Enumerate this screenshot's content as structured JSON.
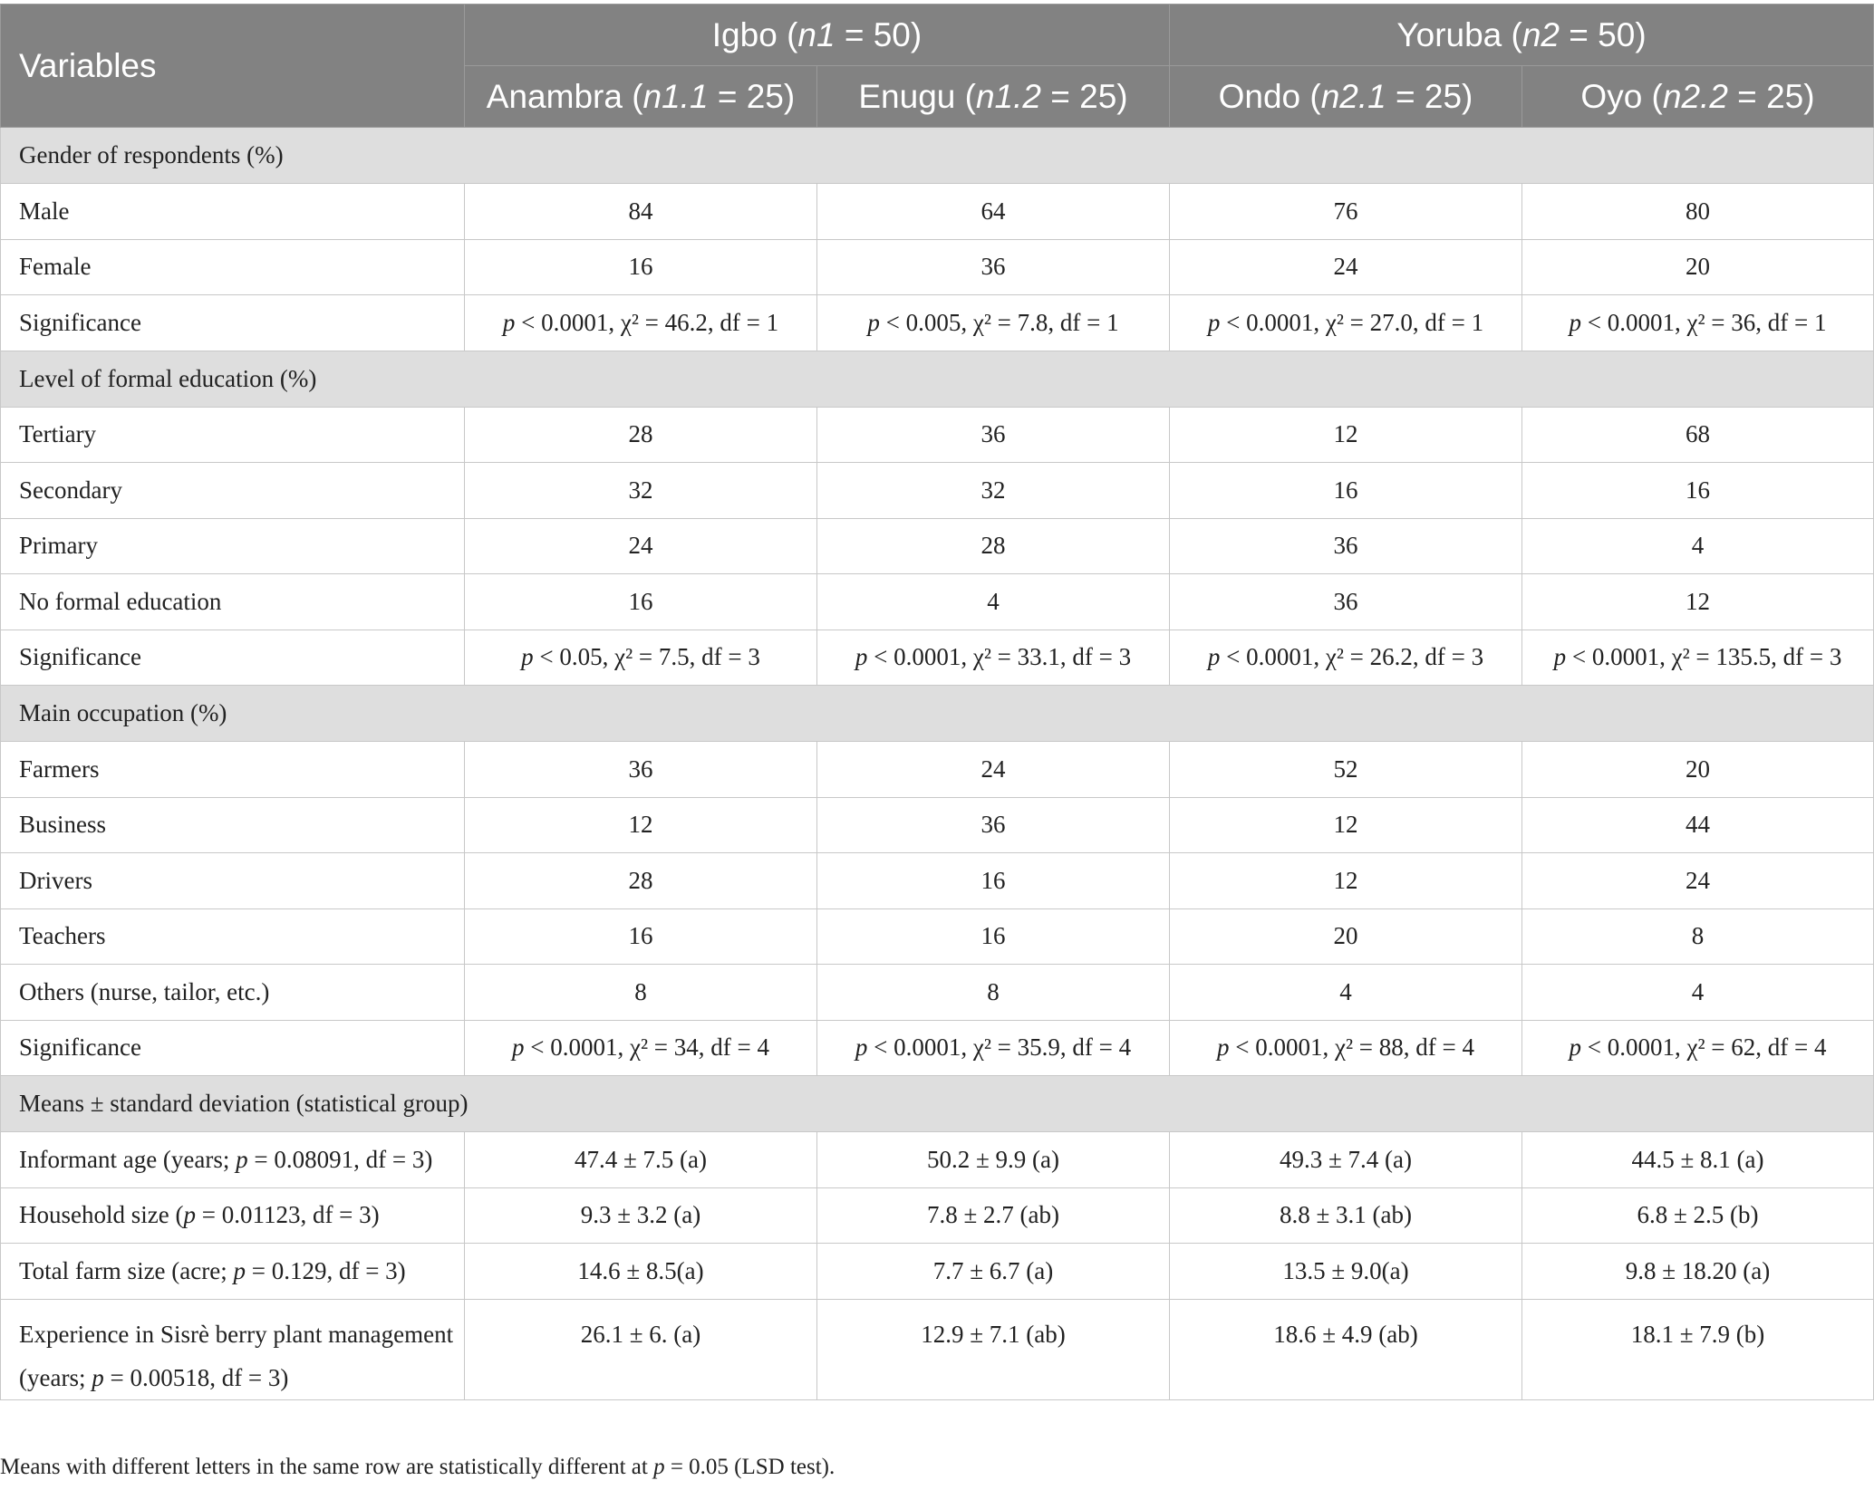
{
  "header": {
    "variables": "Variables",
    "groups": [
      {
        "name": "Igbo",
        "n_label": "n1",
        "n_value": " = 50)"
      },
      {
        "name": "Yoruba",
        "n_label": "n2",
        "n_value": " = 50)"
      }
    ],
    "subgroups": [
      {
        "name": "Anambra (",
        "n_label": "n1.1",
        "n_value": " = 25)"
      },
      {
        "name": "Enugu (",
        "n_label": "n1.2",
        "n_value": " = 25)"
      },
      {
        "name": "Ondo (",
        "n_label": "n2.1",
        "n_value": " = 25)"
      },
      {
        "name": "Oyo (",
        "n_label": "n2.2",
        "n_value": " = 25)"
      }
    ]
  },
  "sections": [
    {
      "title": "Gender of respondents (%)",
      "rows": [
        {
          "label": "Male",
          "values": [
            "84",
            "64",
            "76",
            "80"
          ]
        },
        {
          "label": "Female",
          "values": [
            "16",
            "36",
            "24",
            "20"
          ]
        },
        {
          "label": "Significance",
          "values": [
            "p < 0.0001, χ² = 46.2, df = 1",
            "p < 0.005, χ² = 7.8, df = 1",
            "p < 0.0001, χ² = 27.0, df = 1",
            "p < 0.0001, χ² = 36, df = 1"
          ]
        }
      ]
    },
    {
      "title": "Level of formal education (%)",
      "rows": [
        {
          "label": "Tertiary",
          "values": [
            "28",
            "36",
            "12",
            "68"
          ]
        },
        {
          "label": "Secondary",
          "values": [
            "32",
            "32",
            "16",
            "16"
          ]
        },
        {
          "label": "Primary",
          "values": [
            "24",
            "28",
            "36",
            "4"
          ]
        },
        {
          "label": "No formal education",
          "values": [
            "16",
            "4",
            "36",
            "12"
          ]
        },
        {
          "label": "Significance",
          "values": [
            "p < 0.05, χ² = 7.5, df = 3",
            "p < 0.0001, χ² = 33.1, df = 3",
            "p < 0.0001, χ² = 26.2, df = 3",
            "p < 0.0001, χ² = 135.5, df = 3"
          ]
        }
      ]
    },
    {
      "title": "Main occupation (%)",
      "rows": [
        {
          "label": "Farmers",
          "values": [
            "36",
            "24",
            "52",
            "20"
          ]
        },
        {
          "label": "Business",
          "values": [
            "12",
            "36",
            "12",
            "44"
          ]
        },
        {
          "label": "Drivers",
          "values": [
            "28",
            "16",
            "12",
            "24"
          ]
        },
        {
          "label": "Teachers",
          "values": [
            "16",
            "16",
            "20",
            "8"
          ]
        },
        {
          "label": "Others (nurse, tailor, etc.)",
          "values": [
            "8",
            "8",
            "4",
            "4"
          ]
        },
        {
          "label": "Significance",
          "values": [
            "p < 0.0001, χ² = 34, df = 4",
            "p < 0.0001, χ² = 35.9, df = 4",
            "p < 0.0001, χ² = 88, df = 4",
            "p < 0.0001, χ² = 62, df = 4"
          ]
        }
      ]
    },
    {
      "title": "Means ± standard deviation (statistical group)",
      "rows": [
        {
          "label": "Informant age (years; p = 0.08091, df = 3)",
          "values": [
            "47.4 ± 7.5 (a)",
            "50.2 ± 9.9 (a)",
            "49.3 ± 7.4 (a)",
            "44.5 ± 8.1 (a)"
          ]
        },
        {
          "label": "Household size (p = 0.01123, df = 3)",
          "values": [
            "9.3 ± 3.2 (a)",
            "7.8 ± 2.7 (ab)",
            "8.8 ± 3.1 (ab)",
            "6.8 ± 2.5 (b)"
          ]
        },
        {
          "label": "Total farm size (acre; p = 0.129, df = 3)",
          "values": [
            "14.6 ± 8.5(a)",
            "7.7 ± 6.7 (a)",
            "13.5 ± 9.0(a)",
            "9.8 ± 18.20 (a)"
          ]
        },
        {
          "label": "Experience in Sisrè berry plant management (years; p = 0.00518, df = 3)",
          "values": [
            "26.1 ± 6. (a)",
            "12.9 ± 7.1 (ab)",
            "18.6 ± 4.9 (ab)",
            "18.1 ± 7.9 (b)"
          ]
        }
      ]
    }
  ],
  "footnote": "Means with different letters in the same row are statistically different at p = 0.05 (LSD test)."
}
